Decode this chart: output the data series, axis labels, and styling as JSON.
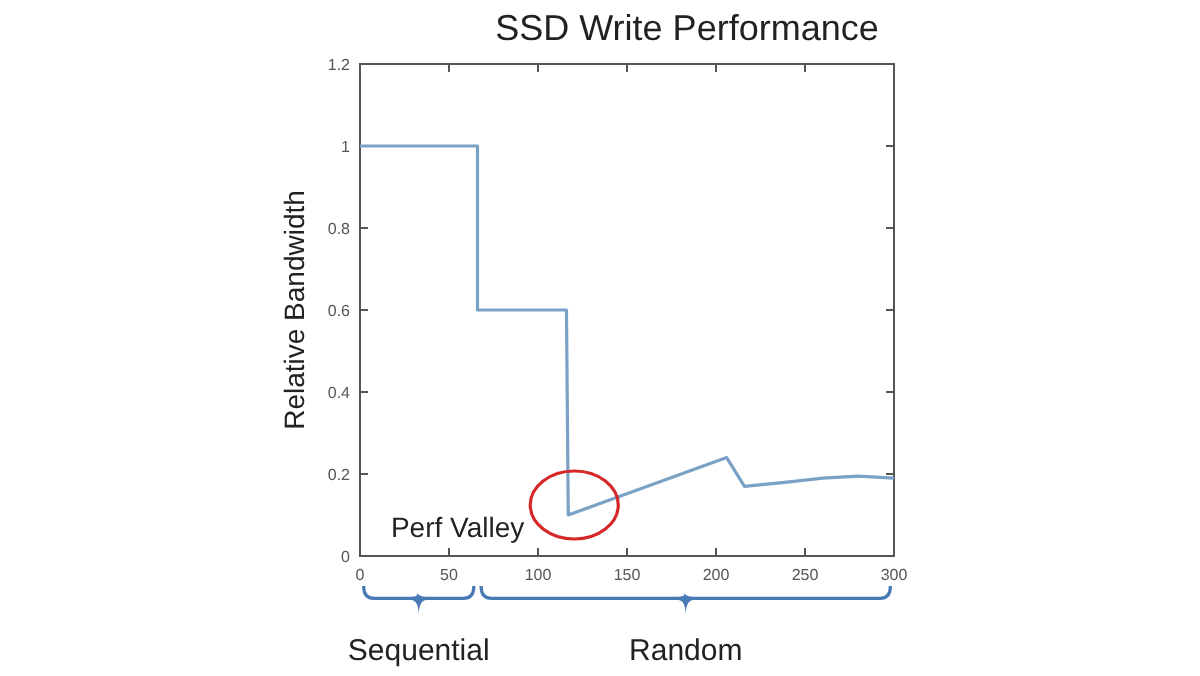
{
  "chart_data": {
    "type": "line",
    "title": "SSD Write Performance",
    "ylabel": "Relative Bandwidth",
    "xlim": [
      0,
      300
    ],
    "xticks": [
      0,
      50,
      100,
      150,
      200,
      250,
      300
    ],
    "ylim": [
      0,
      1.2
    ],
    "yticks": [
      0,
      0.2,
      0.4,
      0.6,
      0.8,
      1,
      1.2
    ],
    "series": [
      {
        "color": "#7aa2c6",
        "x": [
          0,
          66,
          66,
          116,
          117,
          206,
          216,
          240,
          260,
          280,
          300
        ],
        "values": [
          1,
          1,
          0.6,
          0.6,
          0.1,
          0.24,
          0.17,
          0.18,
          0.19,
          0.195,
          0.19
        ]
      }
    ],
    "annotations": [
      {
        "text": "Perf Valley",
        "x": 117,
        "y": 0.1
      },
      "Sequential",
      "Random"
    ]
  }
}
